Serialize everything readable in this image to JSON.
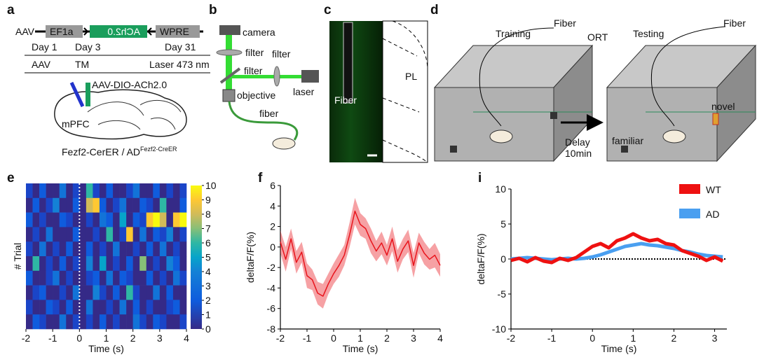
{
  "figure_labels": [
    "a",
    "b",
    "c",
    "d",
    "e",
    "f",
    "i"
  ],
  "panel_a": {
    "construct": [
      "AAV",
      "EF1a",
      "ACh2.0",
      "WPRE"
    ],
    "days": [
      "Day 1",
      "Day 3",
      "Day 31"
    ],
    "events": [
      "AAV",
      "TM",
      "Laser 473 nm"
    ],
    "virus": "AAV-DIO-ACh2.0",
    "region": "mPFC",
    "mouse_line": "Fezf2-CerER / AD",
    "mouse_line_superscript": "Fezf2-CreER"
  },
  "panel_b": {
    "labels": [
      "camera",
      "filter",
      "filter",
      "filter",
      "laser",
      "objective",
      "fiber"
    ]
  },
  "panel_c": {
    "fiber": "Fiber",
    "region": "PL"
  },
  "panel_d": {
    "training": "Training",
    "testing": "Testing",
    "fiber_labels": [
      "Fiber",
      "Fiber"
    ],
    "task": "ORT",
    "delay": [
      "Delay",
      "10min"
    ],
    "objects": [
      "familiar",
      "novel"
    ]
  },
  "chart_data": [
    {
      "type": "heatmap",
      "x_label": "Time (s)",
      "y_label": "# Trial",
      "xlim": [
        -2,
        4
      ],
      "xticks": [
        -2,
        -1,
        0,
        1,
        2,
        3,
        4
      ],
      "marker_x": 0,
      "clim": [
        0,
        10
      ],
      "cticks": [
        0,
        1,
        2,
        3,
        4,
        5,
        6,
        7,
        8,
        9,
        10
      ],
      "values": [
        [
          1,
          0,
          2,
          0,
          0,
          3,
          0,
          1,
          0,
          6,
          1,
          0,
          2,
          0,
          0,
          1,
          3,
          0,
          0,
          2,
          0,
          1,
          0,
          1
        ],
        [
          0,
          2,
          0,
          1,
          4,
          0,
          0,
          2,
          0,
          8,
          9,
          2,
          0,
          1,
          3,
          0,
          0,
          2,
          1,
          0,
          6,
          0,
          0,
          2
        ],
        [
          2,
          0,
          1,
          0,
          0,
          2,
          1,
          0,
          0,
          1,
          0,
          3,
          2,
          0,
          5,
          0,
          2,
          1,
          9,
          10,
          8,
          0,
          9,
          10
        ],
        [
          0,
          1,
          0,
          3,
          0,
          0,
          0,
          2,
          0,
          0,
          1,
          0,
          6,
          0,
          1,
          9,
          0,
          3,
          0,
          2,
          1,
          4,
          0,
          1
        ],
        [
          1,
          0,
          3,
          0,
          1,
          0,
          2,
          0,
          0,
          2,
          0,
          1,
          0,
          3,
          0,
          0,
          1,
          0,
          2,
          0,
          3,
          0,
          1,
          0
        ],
        [
          0,
          6,
          0,
          1,
          0,
          2,
          0,
          1,
          0,
          4,
          0,
          5,
          0,
          1,
          0,
          2,
          0,
          7,
          0,
          1,
          0,
          4,
          2,
          0
        ],
        [
          2,
          0,
          0,
          1,
          3,
          0,
          1,
          0,
          0,
          1,
          2,
          0,
          3,
          0,
          2,
          1,
          0,
          0,
          2,
          0,
          1,
          0,
          3,
          1
        ],
        [
          0,
          1,
          2,
          0,
          0,
          1,
          0,
          3,
          0,
          0,
          4,
          1,
          0,
          2,
          0,
          6,
          1,
          0,
          0,
          3,
          0,
          2,
          0,
          0
        ],
        [
          1,
          0,
          0,
          2,
          1,
          0,
          2,
          0,
          0,
          3,
          0,
          0,
          1,
          0,
          3,
          0,
          2,
          0,
          1,
          0,
          0,
          1,
          2,
          0
        ],
        [
          0,
          2,
          1,
          0,
          0,
          3,
          0,
          1,
          0,
          1,
          0,
          2,
          0,
          1,
          0,
          0,
          3,
          1,
          0,
          2,
          1,
          0,
          0,
          1
        ]
      ]
    },
    {
      "type": "line",
      "x_label": "Time (s)",
      "y_label": "deltaF/F(%)",
      "xlim": [
        -2,
        4
      ],
      "xticks": [
        -2,
        -1,
        0,
        1,
        2,
        3,
        4
      ],
      "ylim": [
        -8,
        6
      ],
      "yticks": [
        -8,
        -6,
        -4,
        -2,
        0,
        2,
        4,
        6
      ],
      "x": [
        -2,
        -1.8,
        -1.6,
        -1.4,
        -1.2,
        -1,
        -0.8,
        -0.6,
        -0.4,
        -0.2,
        0,
        0.2,
        0.4,
        0.6,
        0.8,
        1,
        1.2,
        1.4,
        1.6,
        1.8,
        2,
        2.2,
        2.4,
        2.6,
        2.8,
        3,
        3.2,
        3.4,
        3.6,
        3.8,
        4
      ],
      "series": [
        {
          "color": "#e8141c",
          "values": [
            0.5,
            -1.2,
            0.8,
            -1.5,
            -0.5,
            -2.8,
            -3.2,
            -4.5,
            -4.8,
            -3.6,
            -2.6,
            -1.8,
            -0.8,
            1.2,
            3.5,
            2.2,
            1.8,
            0.6,
            -0.4,
            0.4,
            -0.8,
            0.8,
            -1.4,
            -0.2,
            0.6,
            -1.8,
            0.4,
            -0.6,
            -1.2,
            -0.8,
            -1.8
          ],
          "error": [
            1.1,
            1.2,
            1,
            1.1,
            1,
            1.2,
            1,
            1.1,
            1.2,
            1,
            1,
            1.1,
            1,
            1.2,
            1.3,
            1.1,
            1,
            1.2,
            1,
            1.1,
            1,
            1.2,
            1.1,
            1,
            1.1,
            1.2,
            1,
            1.1,
            1,
            1.2,
            1.1
          ]
        }
      ]
    },
    {
      "type": "line",
      "x_label": "Time (s)",
      "y_label": "deltaF/F(%)",
      "xlim": [
        -2,
        3.3
      ],
      "xticks": [
        -2,
        -1,
        0,
        1,
        2,
        3
      ],
      "ylim": [
        -10,
        10
      ],
      "yticks": [
        -10,
        -5,
        0,
        5,
        10
      ],
      "reference_line": 0,
      "x": [
        -2,
        -1.8,
        -1.6,
        -1.4,
        -1.2,
        -1,
        -0.8,
        -0.6,
        -0.4,
        -0.2,
        0,
        0.2,
        0.4,
        0.6,
        0.8,
        1,
        1.2,
        1.4,
        1.6,
        1.8,
        2,
        2.2,
        2.4,
        2.6,
        2.8,
        3,
        3.2
      ],
      "series": [
        {
          "name": "WT",
          "color": "#ee1111",
          "values": [
            -0.2,
            0.1,
            -0.4,
            0.2,
            -0.3,
            -0.5,
            0.1,
            -0.2,
            0.2,
            1,
            1.8,
            2.2,
            1.6,
            2.6,
            3,
            3.6,
            3,
            2.6,
            2.8,
            2.2,
            2,
            1.2,
            0.8,
            0.4,
            -0.2,
            0.3,
            -0.3
          ]
        },
        {
          "name": "AD",
          "color": "#4a9ff0",
          "values": [
            0,
            0.1,
            0.2,
            0.1,
            0,
            -0.1,
            0,
            0.1,
            0,
            0.1,
            0.3,
            0.6,
            1,
            1.4,
            1.8,
            2,
            2.2,
            2,
            1.9,
            1.7,
            1.5,
            1.2,
            1,
            0.7,
            0.5,
            0.4,
            0.3
          ]
        }
      ]
    }
  ]
}
